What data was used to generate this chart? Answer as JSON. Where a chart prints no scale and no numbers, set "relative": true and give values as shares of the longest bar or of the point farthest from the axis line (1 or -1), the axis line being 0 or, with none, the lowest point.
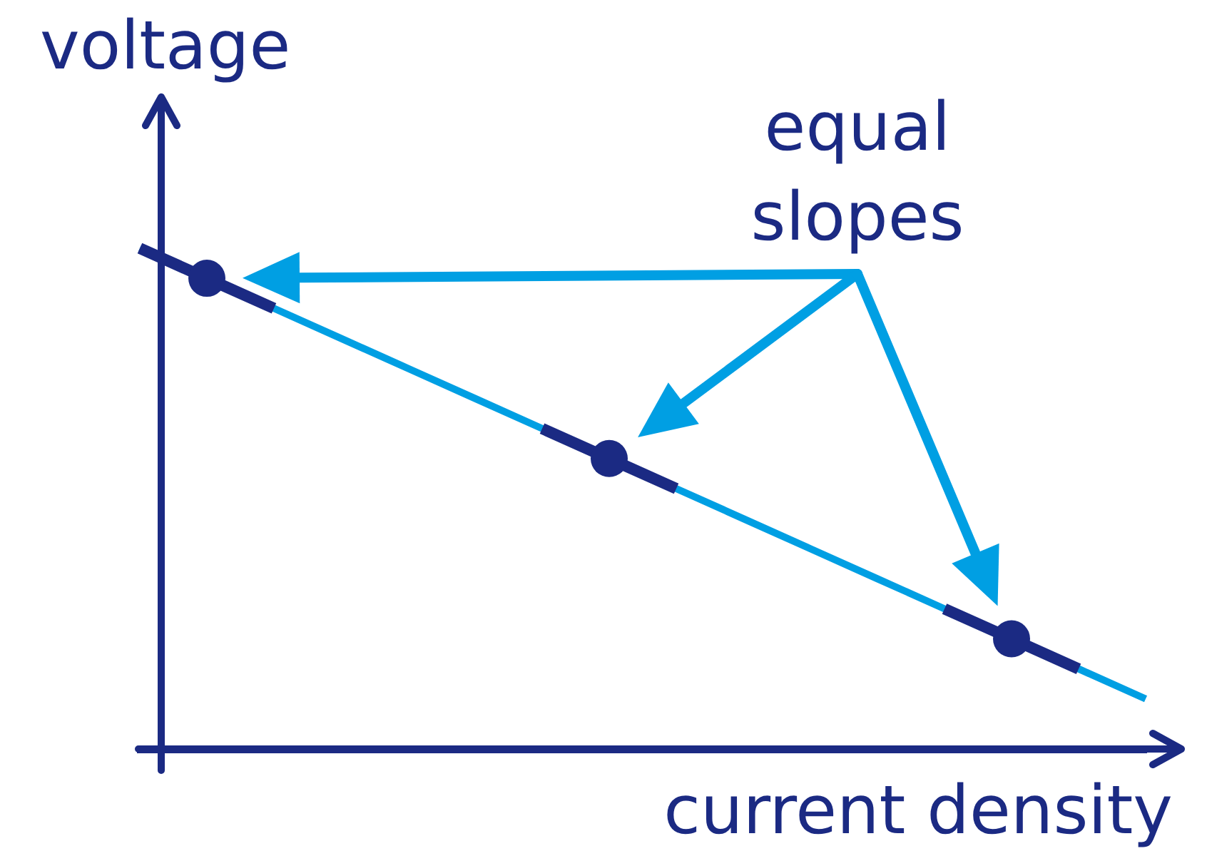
{
  "chart_data": {
    "type": "line",
    "relative": true,
    "xlabel": "current density",
    "ylabel": "voltage",
    "annotations": [
      "equal slopes"
    ],
    "categories": [
      null,
      null,
      null,
      null,
      null,
      null,
      null,
      null,
      null,
      null,
      null,
      null,
      null,
      null,
      null,
      null
    ],
    "series": [
      {
        "color": "#009fe3",
        "values": [
          1,
          0.94,
          0.88,
          0.82,
          0.76,
          0.7,
          0.64,
          0.58,
          0.52,
          0.46,
          0.4,
          0.34,
          0.28,
          0.22,
          0.16,
          0.1
        ]
      },
      {
        "color": "#1b2a83",
        "values": [
          1,
          0.94,
          0.88,
          null,
          null,
          null,
          0.64,
          0.58,
          0.52,
          null,
          null,
          null,
          0.28,
          0.22,
          0.16,
          null
        ]
      },
      {
        "color": "#1b2a83",
        "marker": "circle",
        "values": [
          null,
          0.94,
          null,
          null,
          null,
          null,
          null,
          0.58,
          null,
          null,
          null,
          null,
          null,
          0.22,
          null,
          null
        ]
      }
    ]
  }
}
